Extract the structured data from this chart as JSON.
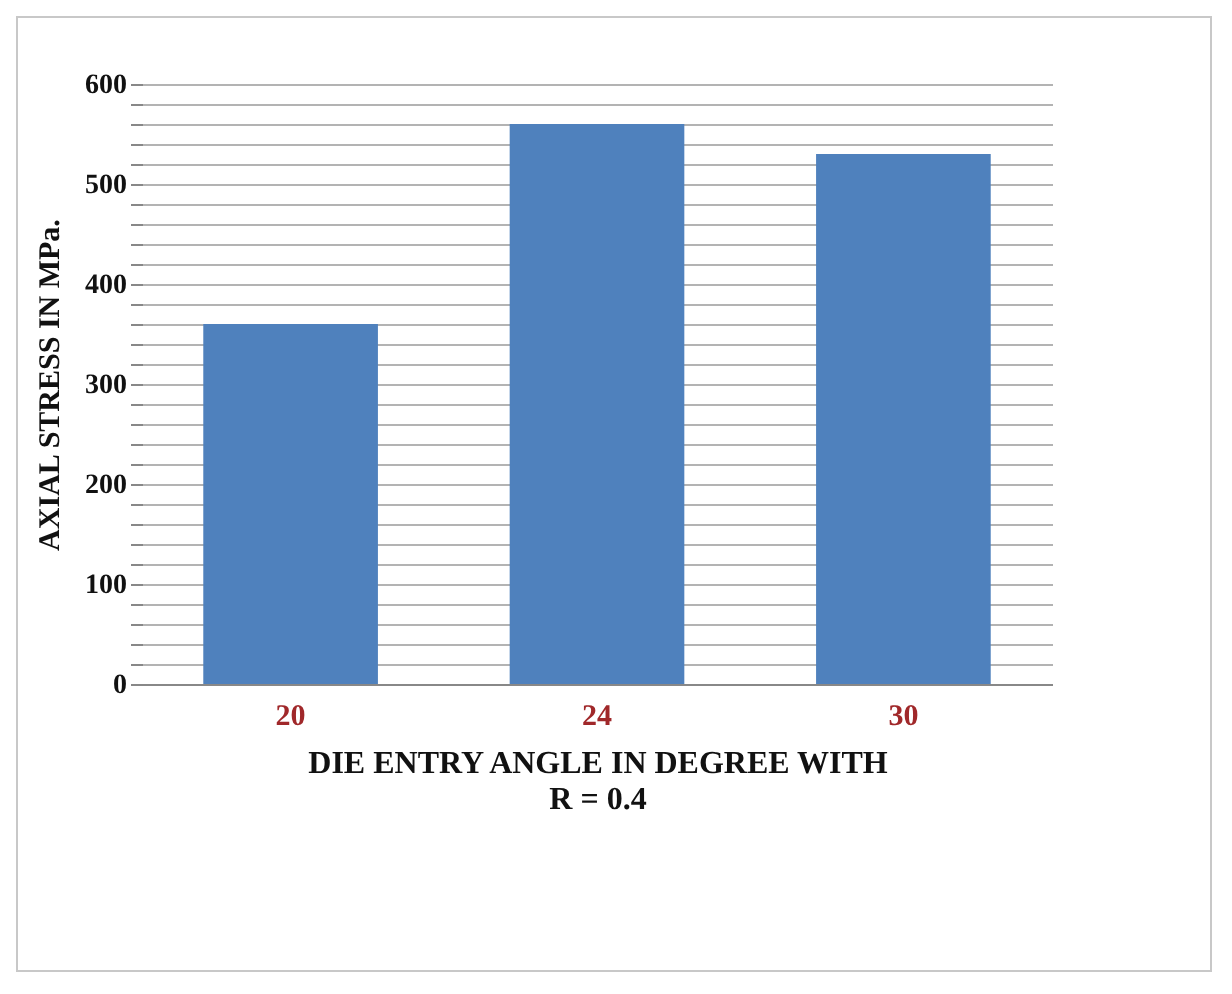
{
  "chart_data": {
    "type": "bar",
    "categories": [
      "20",
      "24",
      "30"
    ],
    "values": [
      360,
      560,
      530
    ],
    "color": "#4f81bd",
    "xlabel": "DIE ENTRY ANGLE IN DEGREE WITH\nR = 0.4",
    "ylabel": "AXIAL STRESS IN MPa.",
    "ylim": [
      0,
      600
    ],
    "yticks": [
      0,
      {
        "value": 20,
        "label": null
      },
      {
        "value": 40,
        "label": null
      },
      {
        "value": 60,
        "label": null
      },
      {
        "value": 80,
        "label": null
      },
      100,
      {
        "value": 120,
        "label": null
      },
      {
        "value": 140,
        "label": null
      },
      {
        "value": 160,
        "label": null
      },
      {
        "value": 180,
        "label": null
      },
      200,
      {
        "value": 220,
        "label": null
      },
      {
        "value": 240,
        "label": null
      },
      {
        "value": 260,
        "label": null
      },
      {
        "value": 280,
        "label": null
      },
      300,
      {
        "value": 320,
        "label": null
      },
      {
        "value": 340,
        "label": null
      },
      {
        "value": 360,
        "label": null
      },
      {
        "value": 380,
        "label": null
      },
      400,
      {
        "value": 420,
        "label": null
      },
      {
        "value": 440,
        "label": null
      },
      {
        "value": 460,
        "label": null
      },
      {
        "value": 480,
        "label": null
      },
      500,
      {
        "value": 520,
        "label": null
      },
      {
        "value": 540,
        "label": null
      },
      {
        "value": 560,
        "label": null
      },
      {
        "value": 580,
        "label": null
      },
      600
    ],
    "grid": true
  }
}
